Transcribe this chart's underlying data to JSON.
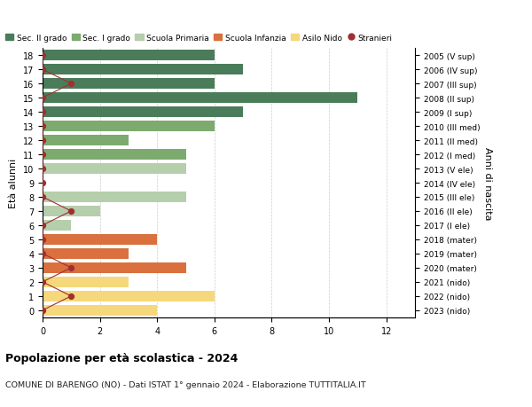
{
  "ages": [
    18,
    17,
    16,
    15,
    14,
    13,
    12,
    11,
    10,
    9,
    8,
    7,
    6,
    5,
    4,
    3,
    2,
    1,
    0
  ],
  "years": [
    "2005 (V sup)",
    "2006 (IV sup)",
    "2007 (III sup)",
    "2008 (II sup)",
    "2009 (I sup)",
    "2010 (III med)",
    "2011 (II med)",
    "2012 (I med)",
    "2013 (V ele)",
    "2014 (IV ele)",
    "2015 (III ele)",
    "2016 (II ele)",
    "2017 (I ele)",
    "2018 (mater)",
    "2019 (mater)",
    "2020 (mater)",
    "2021 (nido)",
    "2022 (nido)",
    "2023 (nido)"
  ],
  "bar_values": [
    6,
    7,
    6,
    11,
    7,
    6,
    3,
    5,
    5,
    0,
    5,
    2,
    1,
    4,
    3,
    5,
    3,
    6,
    4
  ],
  "stranieri_x": [
    0,
    0,
    1,
    0,
    0,
    0,
    0,
    0,
    0,
    0,
    0,
    1,
    0,
    0,
    0,
    1,
    0,
    1,
    0
  ],
  "bar_colors": {
    "Sec. II grado": "#4a7c59",
    "Sec. I grado": "#7daa6e",
    "Scuola Primaria": "#b5ceab",
    "Scuola Infanzia": "#d9703e",
    "Asilo Nido": "#f5d87b"
  },
  "age_to_category": {
    "18": "Sec. II grado",
    "17": "Sec. II grado",
    "16": "Sec. II grado",
    "15": "Sec. II grado",
    "14": "Sec. II grado",
    "13": "Sec. I grado",
    "12": "Sec. I grado",
    "11": "Sec. I grado",
    "10": "Scuola Primaria",
    "9": "Scuola Primaria",
    "8": "Scuola Primaria",
    "7": "Scuola Primaria",
    "6": "Scuola Primaria",
    "5": "Scuola Infanzia",
    "4": "Scuola Infanzia",
    "3": "Scuola Infanzia",
    "2": "Asilo Nido",
    "1": "Asilo Nido",
    "0": "Asilo Nido"
  },
  "line_color": "#a03030",
  "dot_color": "#a03030",
  "ylabel": "Età alunni",
  "right_label": "Anni di nascita",
  "xlim": [
    0,
    13
  ],
  "xticks": [
    0,
    2,
    4,
    6,
    8,
    10,
    12
  ],
  "background_color": "#ffffff",
  "grid_color": "#cccccc",
  "title1": "Popolazione per età scolastica - 2024",
  "title2": "COMUNE DI BARENGO (NO) - Dati ISTAT 1° gennaio 2024 - Elaborazione TUTTITALIA.IT"
}
